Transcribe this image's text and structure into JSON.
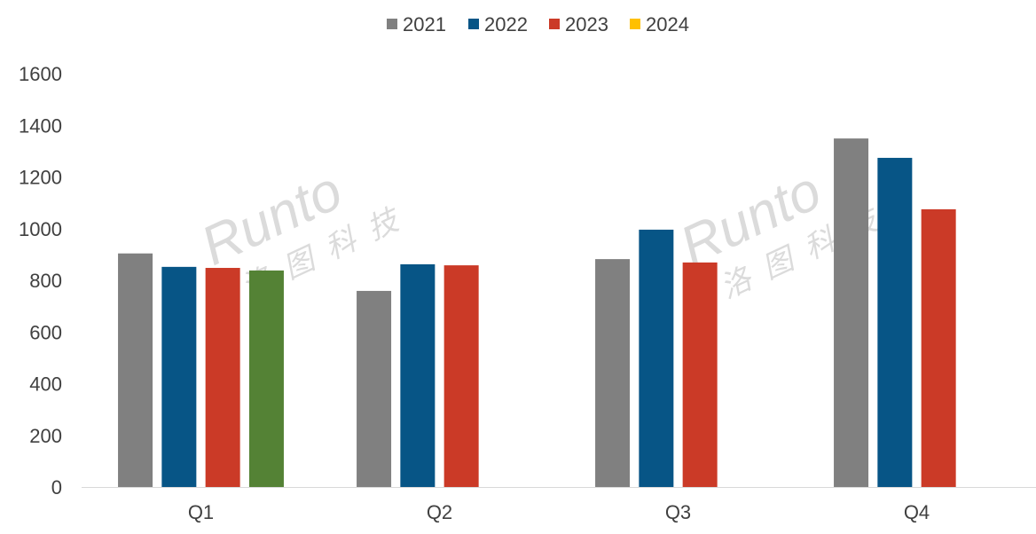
{
  "chart_data": {
    "type": "bar",
    "title": "",
    "xlabel": "",
    "ylabel": "",
    "categories": [
      "Q1",
      "Q2",
      "Q3",
      "Q4"
    ],
    "ylim": [
      0,
      1600
    ],
    "yticks": [
      0,
      200,
      400,
      600,
      800,
      1000,
      1200,
      1400,
      1600
    ],
    "grid": false,
    "legend_position": "top",
    "series": [
      {
        "name": "2021",
        "color": "#808080",
        "values": [
          904,
          759,
          882,
          1349
        ]
      },
      {
        "name": "2022",
        "color": "#075586",
        "values": [
          852,
          862,
          996,
          1274
        ]
      },
      {
        "name": "2023",
        "color": "#CB3A27",
        "values": [
          848,
          858,
          869,
          1075
        ]
      },
      {
        "name": "2024",
        "color": "#FFC000",
        "bar_color": "#548235",
        "values": [
          838,
          null,
          null,
          null
        ]
      }
    ]
  },
  "watermark": {
    "brand": "Runto",
    "chinese": "洛图科技"
  }
}
